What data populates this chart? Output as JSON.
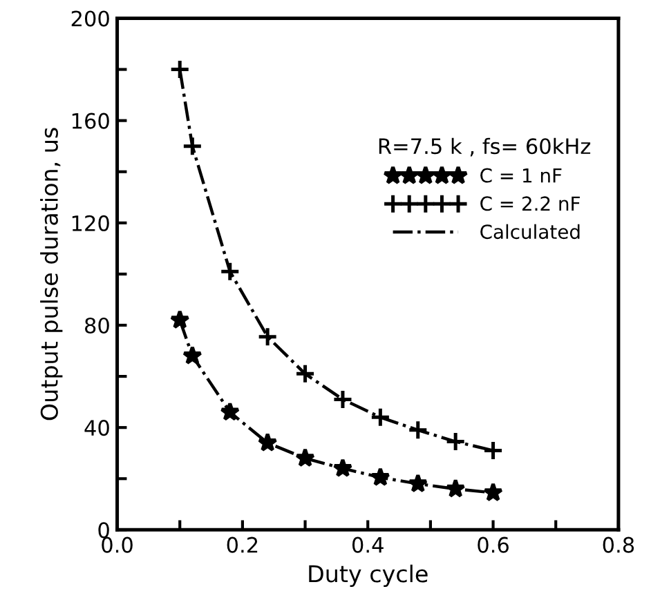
{
  "chart_data": {
    "type": "line",
    "xlabel": "Duty cycle",
    "ylabel": "Output pulse duration, us",
    "legend_title": "R=7.5 k , fs= 60kHz",
    "x": [
      0.1,
      0.12,
      0.18,
      0.24,
      0.3,
      0.36,
      0.42,
      0.48,
      0.54,
      0.6
    ],
    "series": [
      {
        "name": "C = 1 nF",
        "type": "scatter",
        "marker": "star",
        "color": "#000000",
        "values": [
          82,
          68,
          46,
          34,
          28,
          24,
          20.5,
          18,
          16,
          14.5
        ]
      },
      {
        "name": "C = 2.2 nF",
        "type": "scatter",
        "marker": "cross",
        "color": "#000000",
        "values": [
          180,
          150,
          101,
          75.5,
          61,
          51,
          44,
          39,
          34.5,
          31
        ]
      },
      {
        "name": "Calculated",
        "line_style": "dashdot",
        "marker": "none",
        "color": "#000000",
        "values": [
          82,
          68,
          46,
          34,
          28,
          24,
          20.5,
          18,
          16,
          14.5
        ]
      },
      {
        "line_style": "dashdot",
        "marker": "none",
        "color": "#000000",
        "values": [
          180,
          150,
          101,
          75.5,
          61,
          51,
          44,
          39,
          34.5,
          31
        ]
      }
    ],
    "xlim": [
      0,
      0.8
    ],
    "ylim": [
      0,
      200
    ],
    "xticks": [
      {
        "value": 0,
        "label": "0.0"
      },
      {
        "value": 0.1,
        "label": null
      },
      {
        "value": 0.2,
        "label": "0.2"
      },
      {
        "value": 0.3,
        "label": null
      },
      {
        "value": 0.4,
        "label": "0.4"
      },
      {
        "value": 0.5,
        "label": null
      },
      {
        "value": 0.6,
        "label": "0.6"
      },
      {
        "value": 0.7,
        "label": null
      },
      {
        "value": 0.8,
        "label": "0.8"
      }
    ],
    "yticks": [
      0,
      {
        "value": 20,
        "label": null
      },
      40,
      {
        "value": 60,
        "label": null
      },
      80,
      {
        "value": 100,
        "label": null
      },
      120,
      {
        "value": 140,
        "label": null
      },
      160,
      {
        "value": 180,
        "label": null
      },
      200
    ],
    "grid": false,
    "legend": "top right"
  }
}
